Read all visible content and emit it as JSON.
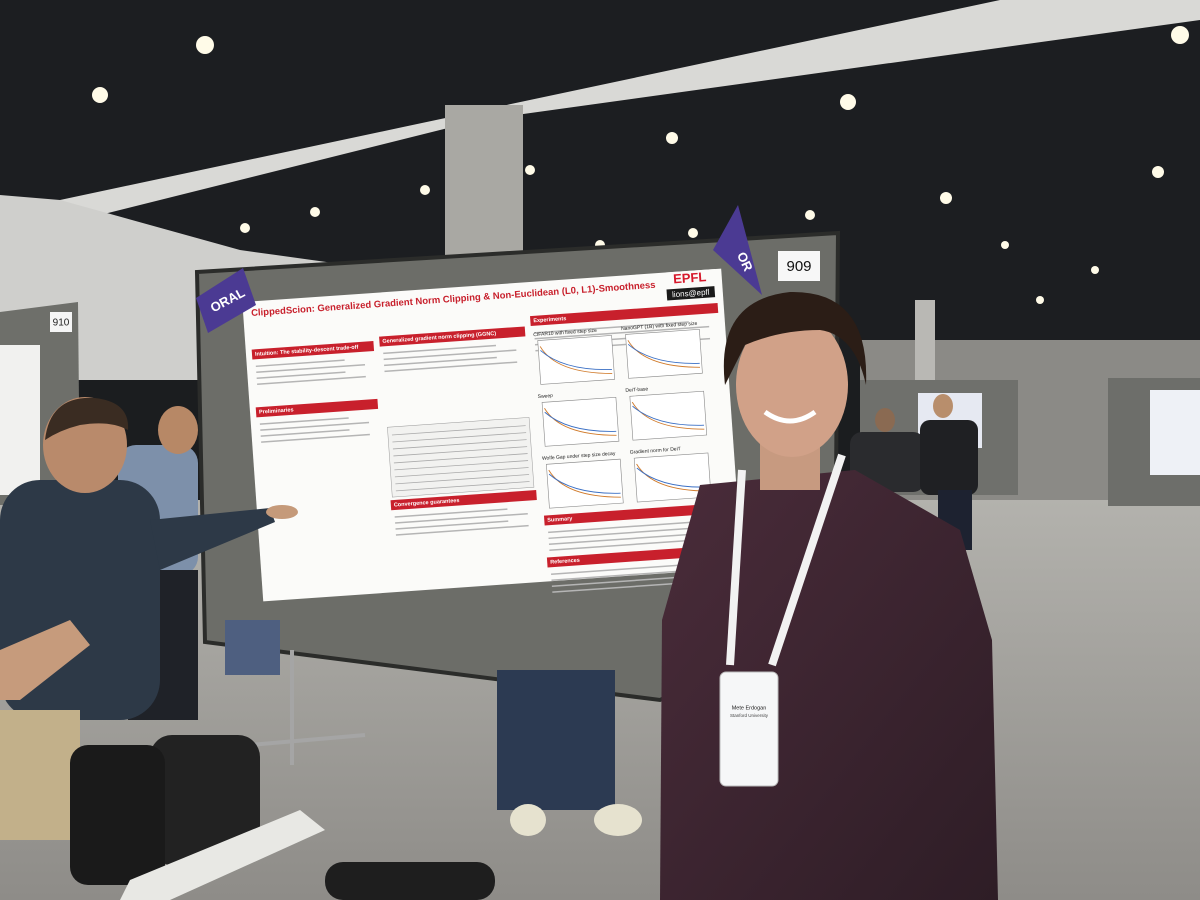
{
  "poster": {
    "title": "ClippedScion: Generalized Gradient Norm Clipping & Non-Euclidean (L0, L1)-Smoothness",
    "logo": "EPFL",
    "lab": "lions@epfl",
    "sections": [
      "Intuition: The stability-descent trade-off",
      "Preliminaries",
      "Generalized gradient norm clipping (GGNC)",
      "Convergence guarantees",
      "Experiments",
      "Summary",
      "References"
    ],
    "plots": [
      "CIFAR10 with fixed step size",
      "NanoGPT (1B) with fixed step size",
      "Sweep",
      "DeiT-base",
      "Wolfe Gap under step size decay",
      "Gradient norm for DeiT"
    ]
  },
  "signs": {
    "left_board": "910",
    "right_board": "909"
  },
  "flags": [
    "ORAL",
    "OR"
  ],
  "badge": {
    "name": "Mete Erdogan",
    "affiliation": "Stanford University"
  }
}
